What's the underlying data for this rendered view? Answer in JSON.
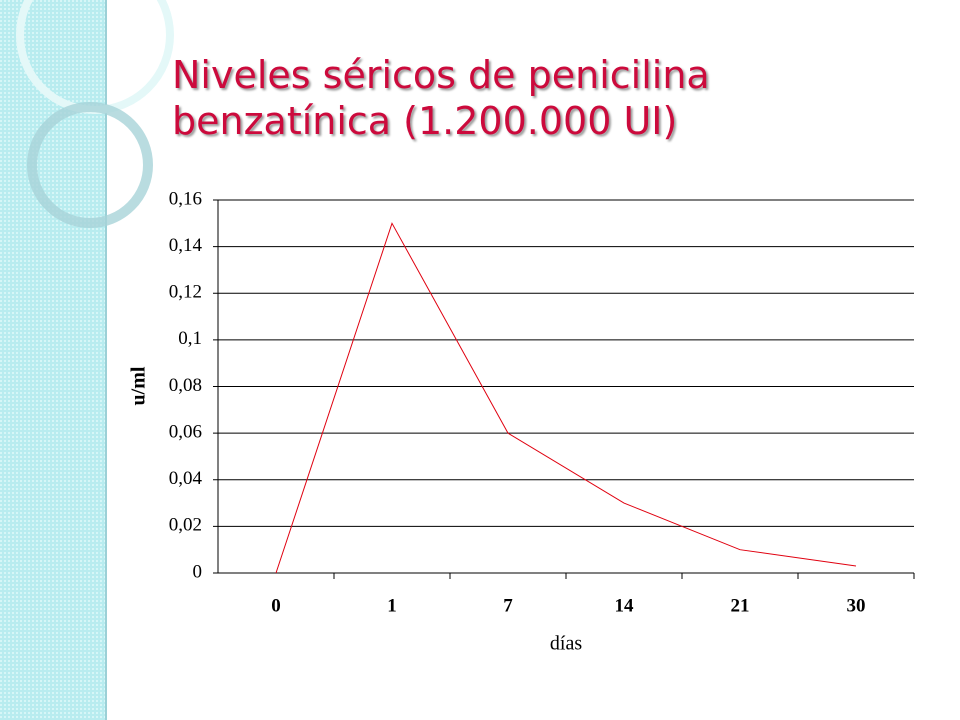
{
  "chart_data": {
    "type": "line",
    "title": "Niveles séricos de penicilina benzatínica (1.200.000 UI)",
    "x_label": "días",
    "y_label": "u/ml",
    "categories": [
      "0",
      "1",
      "7",
      "14",
      "21",
      "30"
    ],
    "values": [
      0,
      0.15,
      0.06,
      0.03,
      0.01,
      0.003
    ],
    "color": "#e0000f",
    "ylim": [
      0,
      0.16
    ],
    "yticks": [
      0,
      {
        "value": 0.02,
        "label": "0,02"
      },
      {
        "value": 0.04,
        "label": "0,04"
      },
      {
        "value": 0.06,
        "label": "0,06"
      },
      {
        "value": 0.08,
        "label": "0,08"
      },
      {
        "value": 0.1,
        "label": "0,1"
      },
      {
        "value": 0.12,
        "label": "0,12"
      },
      {
        "value": 0.14,
        "label": "0,14"
      },
      {
        "value": 0.16,
        "label": "0,16"
      }
    ],
    "grid": true
  }
}
